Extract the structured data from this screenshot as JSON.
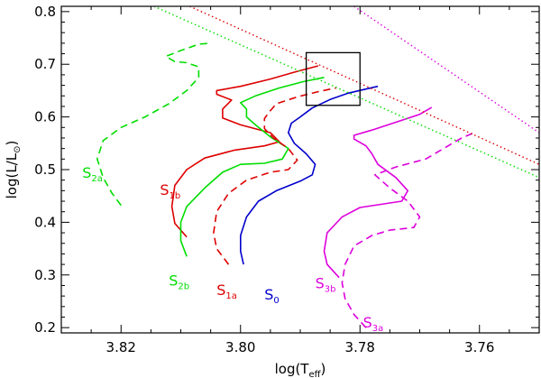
{
  "chart_data": {
    "type": "line",
    "xlabel": "log(T",
    "xlabel_sub": "eff",
    "xlabel_end": ")",
    "ylabel": "log(L/L",
    "ylabel_sub": "⊙",
    "ylabel_end": ")",
    "xlim": [
      3.83,
      3.75
    ],
    "ylim": [
      0.19,
      0.81
    ],
    "xticks": [
      3.82,
      3.8,
      3.78,
      3.76
    ],
    "xtick_labels": [
      "3.82",
      "3.80",
      "3.78",
      "3.76"
    ],
    "yticks": [
      0.2,
      0.3,
      0.4,
      0.5,
      0.6,
      0.7,
      0.8
    ],
    "ytick_labels": [
      "0.2",
      "0.3",
      "0.4",
      "0.5",
      "0.6",
      "0.7",
      "0.8"
    ],
    "grid": false,
    "colors": {
      "red": "#dd0000",
      "green": "#00dd00",
      "blue": "#0000cc",
      "magenta": "#dd00dd",
      "black": "#000000"
    },
    "series": [
      {
        "name": "S2a",
        "label": "S",
        "sub": "2a",
        "color": "#00dd00",
        "dash": true,
        "label_pos": [
          3.8265,
          0.485
        ],
        "points": [
          [
            3.82,
            0.432
          ],
          [
            3.8215,
            0.455
          ],
          [
            3.823,
            0.485
          ],
          [
            3.824,
            0.52
          ],
          [
            3.823,
            0.555
          ],
          [
            3.82,
            0.58
          ],
          [
            3.816,
            0.6
          ],
          [
            3.812,
            0.625
          ],
          [
            3.809,
            0.65
          ],
          [
            3.807,
            0.675
          ],
          [
            3.807,
            0.695
          ],
          [
            3.809,
            0.703
          ],
          [
            3.811,
            0.705
          ],
          [
            3.8125,
            0.715
          ],
          [
            3.81,
            0.726
          ],
          [
            3.807,
            0.738
          ],
          [
            3.805,
            0.74
          ]
        ]
      },
      {
        "name": "S1b",
        "label": "S",
        "sub": "1b",
        "color": "#dd0000",
        "dash": false,
        "label_pos": [
          3.8135,
          0.452
        ],
        "points": [
          [
            3.809,
            0.372
          ],
          [
            3.811,
            0.398
          ],
          [
            3.8115,
            0.43
          ],
          [
            3.811,
            0.47
          ],
          [
            3.809,
            0.5
          ],
          [
            3.806,
            0.522
          ],
          [
            3.801,
            0.537
          ],
          [
            3.796,
            0.545
          ],
          [
            3.7935,
            0.553
          ],
          [
            3.795,
            0.57
          ],
          [
            3.8,
            0.585
          ],
          [
            3.803,
            0.598
          ],
          [
            3.803,
            0.615
          ],
          [
            3.8015,
            0.632
          ],
          [
            3.804,
            0.643
          ],
          [
            3.804,
            0.65
          ],
          [
            3.8,
            0.658
          ],
          [
            3.795,
            0.672
          ],
          [
            3.791,
            0.685
          ],
          [
            3.787,
            0.697
          ]
        ]
      },
      {
        "name": "S2b",
        "label": "S",
        "sub": "2b",
        "color": "#00dd00",
        "dash": false,
        "label_pos": [
          3.812,
          0.28
        ],
        "points": [
          [
            3.809,
            0.335
          ],
          [
            3.81,
            0.365
          ],
          [
            3.81,
            0.4
          ],
          [
            3.809,
            0.43
          ],
          [
            3.806,
            0.465
          ],
          [
            3.803,
            0.495
          ],
          [
            3.8,
            0.51
          ],
          [
            3.796,
            0.512
          ],
          [
            3.793,
            0.52
          ],
          [
            3.792,
            0.54
          ],
          [
            3.795,
            0.562
          ],
          [
            3.7975,
            0.585
          ],
          [
            3.799,
            0.6
          ],
          [
            3.799,
            0.615
          ],
          [
            3.8,
            0.627
          ],
          [
            3.7975,
            0.64
          ],
          [
            3.7935,
            0.655
          ],
          [
            3.7895,
            0.667
          ],
          [
            3.786,
            0.675
          ]
        ]
      },
      {
        "name": "S1a",
        "label": "S",
        "sub": "1a",
        "color": "#dd0000",
        "dash": true,
        "label_pos": [
          3.804,
          0.262
        ],
        "points": [
          [
            3.802,
            0.32
          ],
          [
            3.804,
            0.35
          ],
          [
            3.8045,
            0.38
          ],
          [
            3.804,
            0.42
          ],
          [
            3.802,
            0.455
          ],
          [
            3.799,
            0.48
          ],
          [
            3.795,
            0.495
          ],
          [
            3.792,
            0.5
          ],
          [
            3.7905,
            0.518
          ],
          [
            3.792,
            0.54
          ],
          [
            3.7945,
            0.56
          ],
          [
            3.796,
            0.578
          ],
          [
            3.796,
            0.597
          ],
          [
            3.795,
            0.612
          ],
          [
            3.794,
            0.625
          ],
          [
            3.7905,
            0.638
          ],
          [
            3.787,
            0.648
          ],
          [
            3.784,
            0.655
          ]
        ]
      },
      {
        "name": "S0",
        "label": "S",
        "sub": "0",
        "color": "#0000cc",
        "dash": false,
        "label_pos": [
          3.796,
          0.253
        ],
        "points": [
          [
            3.7995,
            0.32
          ],
          [
            3.8,
            0.345
          ],
          [
            3.8,
            0.375
          ],
          [
            3.799,
            0.41
          ],
          [
            3.797,
            0.44
          ],
          [
            3.794,
            0.46
          ],
          [
            3.79,
            0.478
          ],
          [
            3.788,
            0.49
          ],
          [
            3.7875,
            0.51
          ],
          [
            3.789,
            0.53
          ],
          [
            3.791,
            0.55
          ],
          [
            3.792,
            0.57
          ],
          [
            3.7915,
            0.588
          ],
          [
            3.79,
            0.6
          ],
          [
            3.788,
            0.617
          ],
          [
            3.785,
            0.633
          ],
          [
            3.782,
            0.645
          ],
          [
            3.779,
            0.653
          ],
          [
            3.777,
            0.658
          ]
        ]
      },
      {
        "name": "S3b",
        "label": "S",
        "sub": "3b",
        "color": "#dd00dd",
        "dash": false,
        "label_pos": [
          3.7875,
          0.275
        ],
        "points": [
          [
            3.7835,
            0.295
          ],
          [
            3.7855,
            0.32
          ],
          [
            3.786,
            0.345
          ],
          [
            3.7855,
            0.38
          ],
          [
            3.783,
            0.41
          ],
          [
            3.78,
            0.428
          ],
          [
            3.776,
            0.435
          ],
          [
            3.773,
            0.44
          ],
          [
            3.772,
            0.46
          ],
          [
            3.774,
            0.485
          ],
          [
            3.777,
            0.51
          ],
          [
            3.778,
            0.53
          ],
          [
            3.779,
            0.545
          ],
          [
            3.781,
            0.558
          ],
          [
            3.781,
            0.565
          ],
          [
            3.778,
            0.575
          ],
          [
            3.774,
            0.59
          ],
          [
            3.77,
            0.605
          ],
          [
            3.768,
            0.618
          ]
        ]
      },
      {
        "name": "S3a",
        "label": "S",
        "sub": "3a",
        "color": "#dd00dd",
        "dash": true,
        "label_pos": [
          3.7795,
          0.2
        ],
        "points": [
          [
            3.779,
            0.2
          ],
          [
            3.781,
            0.225
          ],
          [
            3.7825,
            0.255
          ],
          [
            3.783,
            0.285
          ],
          [
            3.7825,
            0.32
          ],
          [
            3.781,
            0.355
          ],
          [
            3.778,
            0.375
          ],
          [
            3.775,
            0.385
          ],
          [
            3.771,
            0.39
          ],
          [
            3.77,
            0.41
          ],
          [
            3.772,
            0.44
          ],
          [
            3.775,
            0.465
          ],
          [
            3.7775,
            0.49
          ],
          [
            3.774,
            0.505
          ],
          [
            3.769,
            0.52
          ],
          [
            3.766,
            0.54
          ],
          [
            3.763,
            0.56
          ],
          [
            3.7605,
            0.572
          ]
        ]
      },
      {
        "name": "green-dotted",
        "color": "#00dd00",
        "dotted": true,
        "points": [
          [
            3.8145,
            0.81
          ],
          [
            3.75,
            0.485
          ]
        ]
      },
      {
        "name": "red-dotted",
        "color": "#dd0000",
        "dotted": true,
        "points": [
          [
            3.8085,
            0.81
          ],
          [
            3.75,
            0.51
          ]
        ]
      },
      {
        "name": "magenta-dotted",
        "color": "#dd00dd",
        "dotted": true,
        "points": [
          [
            3.781,
            0.81
          ],
          [
            3.75,
            0.57
          ]
        ]
      }
    ],
    "box": {
      "x": [
        3.789,
        3.78
      ],
      "y": [
        0.622,
        0.722
      ],
      "color": "#000000"
    }
  }
}
